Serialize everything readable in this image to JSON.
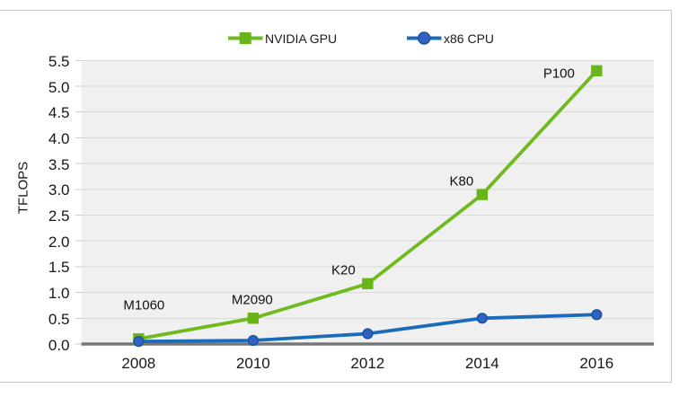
{
  "chart_data": {
    "type": "line",
    "title": "",
    "xlabel": "",
    "ylabel": "TFLOPS",
    "categories": [
      "2008",
      "2010",
      "2012",
      "2014",
      "2016"
    ],
    "ylim": [
      0.0,
      5.5
    ],
    "ytick_step": 0.5,
    "ytick_labels": [
      "0.0",
      "0.5",
      "1.0",
      "1.5",
      "2.0",
      "2.5",
      "3.0",
      "3.5",
      "4.0",
      "4.5",
      "5.0",
      "5.5"
    ],
    "grid": true,
    "legend_position": "top",
    "series": [
      {
        "name": "NVIDIA GPU",
        "marker": "square",
        "color": "#6fba1e",
        "marker_color": "#69b517",
        "values": [
          0.1,
          0.5,
          1.17,
          2.9,
          5.3
        ],
        "point_labels": [
          {
            "text": "M1060",
            "dx": 6,
            "dy": -37
          },
          {
            "text": "M2090",
            "dx": -1,
            "dy": -20
          },
          {
            "text": "K20",
            "dx": -27,
            "dy": -15
          },
          {
            "text": "K80",
            "dx": -23,
            "dy": -15
          },
          {
            "text": "P100",
            "dx": -42,
            "dy": 3
          }
        ]
      },
      {
        "name": "x86 CPU",
        "marker": "circle",
        "color": "#1a6cb8",
        "marker_color": "#2e63c4",
        "marker_edge_color": "#1d4e9c",
        "values": [
          0.05,
          0.07,
          0.2,
          0.5,
          0.57
        ],
        "point_labels": []
      }
    ],
    "plot_bg_color": "#f0f0f0",
    "gridline_color": "#d9d9d9",
    "axis_line_color": "#747878",
    "tick_color": "#c9c9c9"
  }
}
